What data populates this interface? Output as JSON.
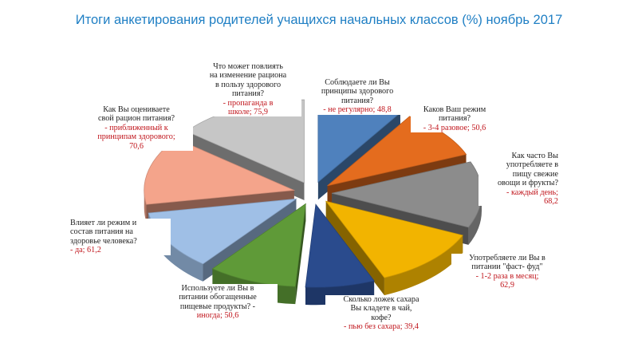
{
  "title": "Итоги анкетирования родителей учащихся начальных классов (%) ноябрь 2017",
  "chart_data": {
    "type": "pie",
    "title": "Итоги анкетирования родителей учащихся начальных классов (%) ноябрь 2017",
    "series": [
      {
        "values": [
          48.8,
          50.6,
          68.2,
          62.9,
          39.4,
          50.6,
          61.2,
          70.6,
          75.9
        ]
      }
    ],
    "slices": [
      {
        "question": "Соблюдаете   ли Вы\nпринципы здорового\nпитания?",
        "answer": "- не регулярно; 48,8",
        "value": 48.8,
        "color": "#4f81bd"
      },
      {
        "question": "Каков Ваш режим\nпитания?",
        "answer": "- 3-4 разовое; 50,6",
        "value": 50.6,
        "color": "#e46c1e"
      },
      {
        "question": "Как часто Вы\nупотребляете в\nпищу свежие\nовощи и фрукты?",
        "answer": "- каждый день;\n68,2",
        "value": 68.2,
        "color": "#8c8c8c"
      },
      {
        "question": "Употребляете ли Вы в\nпитании \"фаст- фуд\"",
        "answer": "-  1-2 раза в месяц;\n62,9",
        "value": 62.9,
        "color": "#f2b400"
      },
      {
        "question": "Сколько ложек сахара\nВы кладете в чай,\nкофе?",
        "answer": "- пью без сахара; 39,4",
        "value": 39.4,
        "color": "#2a4b8d"
      },
      {
        "question": "Используете ли Вы в\nпитании обогащенные\nпищевые продукты?  -",
        "answer": "иногда; 50,6",
        "value": 50.6,
        "color": "#5f9a38"
      },
      {
        "question": "Влияет ли режим и\nсостав питания на\nздоровье человека?",
        "answer": "-  да; 61,2",
        "value": 61.2,
        "color": "#9fbfe6"
      },
      {
        "question": "Как Вы оцениваете\nсвой рацион питания?",
        "answer": "- приближенный к\nпринципам здорового;\n70,6",
        "value": 70.6,
        "color": "#f4a48b"
      },
      {
        "question": "Что может повлиять\nна изменение рациона\nв пользу здорового\nпитания?",
        "answer": "- пропаганда в\nшколе; 75,9",
        "value": 75.9,
        "color": "#c6c6c6"
      }
    ]
  }
}
